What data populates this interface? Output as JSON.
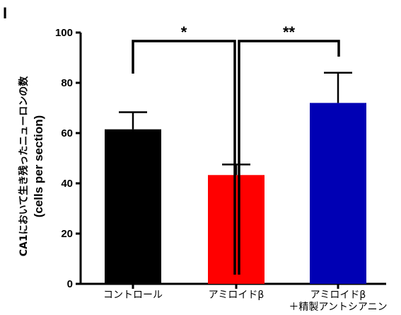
{
  "panel_label": "I",
  "chart_data": {
    "type": "bar",
    "categories": [
      [
        "コントロール"
      ],
      [
        "アミロイドβ"
      ],
      [
        "アミロイドβ",
        "＋精製アントシアニン"
      ]
    ],
    "values": [
      61.5,
      43.3,
      72.0
    ],
    "errors": [
      6.8,
      4.2,
      12.0
    ],
    "colors": [
      "#000000",
      "#ff0000",
      "#0000b4"
    ],
    "ylabel": "CA1において生き残ったニューロンの数",
    "ylabel_sub": "(cells per section)",
    "ylim": [
      0,
      100
    ],
    "yticks": [
      0,
      20,
      40,
      60,
      80,
      100
    ],
    "significance": [
      {
        "from": 0,
        "to": 1,
        "label": "*"
      },
      {
        "from": 1,
        "to": 2,
        "label": "**"
      }
    ]
  }
}
